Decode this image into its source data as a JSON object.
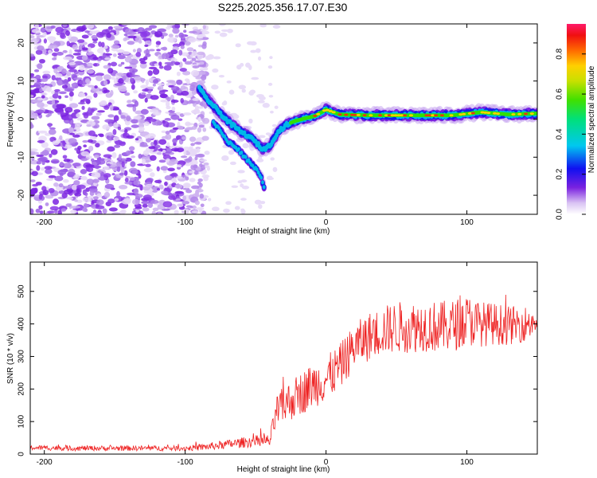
{
  "figure_title": "S225.2025.356.17.07.E30",
  "colors": {
    "accent_line": "#ee2222",
    "frame": "#000000"
  },
  "chart_data": [
    {
      "type": "heatmap",
      "title": "S225.2025.356.17.07.E30",
      "xlabel": "Height of straight line (km)",
      "ylabel": "Frequency (Hz)",
      "xlim": [
        -210,
        150
      ],
      "ylim": [
        -25,
        25
      ],
      "xticks": [
        -200,
        -100,
        0,
        100
      ],
      "yticks": [
        -20,
        -10,
        0,
        10,
        20
      ],
      "colorbar": {
        "label": "Normalized spectral amplitude",
        "range": [
          0.0,
          0.95
        ],
        "ticks": [
          0.0,
          0.2,
          0.4,
          0.6,
          0.8
        ]
      },
      "ridge": {
        "description_points": [
          [
            -90,
            8
          ],
          [
            -85,
            5.5
          ],
          [
            -80,
            3.5
          ],
          [
            -75,
            1.5
          ],
          [
            -70,
            -0.5
          ],
          [
            -65,
            -2
          ],
          [
            -60,
            -3.5
          ],
          [
            -55,
            -4.5
          ],
          [
            -50,
            -6
          ],
          [
            -45,
            -8
          ],
          [
            -40,
            -7
          ],
          [
            -37,
            -5
          ],
          [
            -33,
            -3
          ],
          [
            -28,
            -1.5
          ],
          [
            -22,
            -0.5
          ],
          [
            -15,
            0.2
          ],
          [
            -8,
            0.8
          ],
          [
            0,
            2.5
          ],
          [
            10,
            1.2
          ],
          [
            30,
            1
          ],
          [
            60,
            1
          ],
          [
            90,
            1
          ],
          [
            110,
            1.8
          ],
          [
            130,
            1.2
          ],
          [
            150,
            1.5
          ]
        ],
        "branch_points": [
          [
            -80,
            -1
          ],
          [
            -75,
            -3
          ],
          [
            -70,
            -6
          ],
          [
            -65,
            -7
          ],
          [
            -60,
            -9
          ],
          [
            -55,
            -11
          ],
          [
            -50,
            -13
          ],
          [
            -46,
            -15
          ],
          [
            -44,
            -18
          ]
        ]
      }
    },
    {
      "type": "line",
      "xlabel": "Height of straight line (km)",
      "ylabel": "SNR (10 * v/v)",
      "xlim": [
        -210,
        150
      ],
      "ylim": [
        0,
        590
      ],
      "xticks": [
        -200,
        -100,
        0,
        100
      ],
      "yticks": [
        0,
        100,
        200,
        300,
        400,
        500
      ],
      "series": [
        {
          "name": "SNR",
          "trend_x": [
            -210,
            -180,
            -150,
            -120,
            -100,
            -90,
            -80,
            -70,
            -60,
            -50,
            -40,
            -35,
            -30,
            -20,
            -10,
            0,
            10,
            20,
            30,
            40,
            50,
            60,
            70,
            80,
            90,
            100,
            110,
            120,
            130,
            140,
            150
          ],
          "trend_y": [
            20,
            18,
            18,
            18,
            18,
            20,
            25,
            30,
            35,
            40,
            40,
            130,
            150,
            180,
            210,
            230,
            270,
            330,
            360,
            380,
            390,
            390,
            395,
            390,
            395,
            410,
            400,
            400,
            395,
            400,
            410
          ],
          "noise": [
            8,
            8,
            8,
            8,
            8,
            10,
            12,
            14,
            16,
            18,
            20,
            50,
            60,
            65,
            70,
            70,
            70,
            70,
            75,
            75,
            80,
            80,
            80,
            80,
            80,
            80,
            70,
            65,
            60,
            55,
            50
          ]
        }
      ]
    }
  ]
}
